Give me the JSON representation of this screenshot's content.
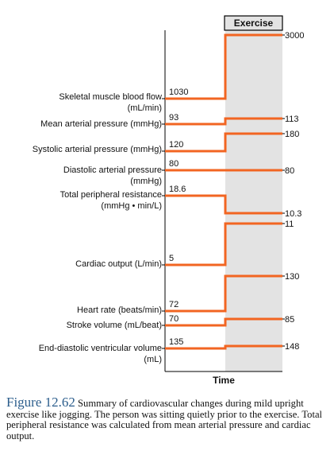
{
  "figure_number": "Figure 12.62",
  "caption_text": "Summary of cardiovascular changes during mild upright exercise like jogging. The person was sitting quietly prior to the exercise. Total peripheral resistance was calculated from mean arterial pressure and cardiac output.",
  "chart_data": {
    "type": "line",
    "phase_label": "Exercise",
    "xlabel": "Time",
    "colors": {
      "line": "#f26522",
      "shade": "#e3e3e3",
      "axis": "#000000"
    },
    "variables": [
      {
        "label": [
          "Skeletal muscle blood flow",
          "(mL/min)"
        ],
        "rest_label": "1030",
        "exercise_label": "3000",
        "rest": 1030,
        "exercise": 3000
      },
      {
        "label": [
          "Mean arterial pressure (mmHg)"
        ],
        "rest_label": "93",
        "exercise_label": "113",
        "rest": 93,
        "exercise": 113
      },
      {
        "label": [
          "Systolic arterial pressure (mmHg)"
        ],
        "rest_label": "120",
        "exercise_label": "180",
        "rest": 120,
        "exercise": 180
      },
      {
        "label": [
          "Diastolic arterial pressure",
          "(mmHg)"
        ],
        "rest_label": "80",
        "exercise_label": "80",
        "rest": 80,
        "exercise": 80
      },
      {
        "label": [
          "Total peripheral resistance",
          "(mmHg • min/L)"
        ],
        "rest_label": "18.6",
        "exercise_label": "10.3",
        "rest": 18.6,
        "exercise": 10.3
      },
      {
        "label": [
          "Cardiac output (L/min)"
        ],
        "rest_label": "5",
        "exercise_label": "11",
        "rest": 5,
        "exercise": 11
      },
      {
        "label": [
          "Heart rate (beats/min)"
        ],
        "rest_label": "72",
        "exercise_label": "130",
        "rest": 72,
        "exercise": 130
      },
      {
        "label": [
          "Stroke volume (mL/beat)"
        ],
        "rest_label": "70",
        "exercise_label": "85",
        "rest": 70,
        "exercise": 85
      },
      {
        "label": [
          "End-diastolic ventricular volume",
          "(mL)"
        ],
        "rest_label": "135",
        "exercise_label": "148",
        "rest": 135,
        "exercise": 148
      }
    ]
  }
}
